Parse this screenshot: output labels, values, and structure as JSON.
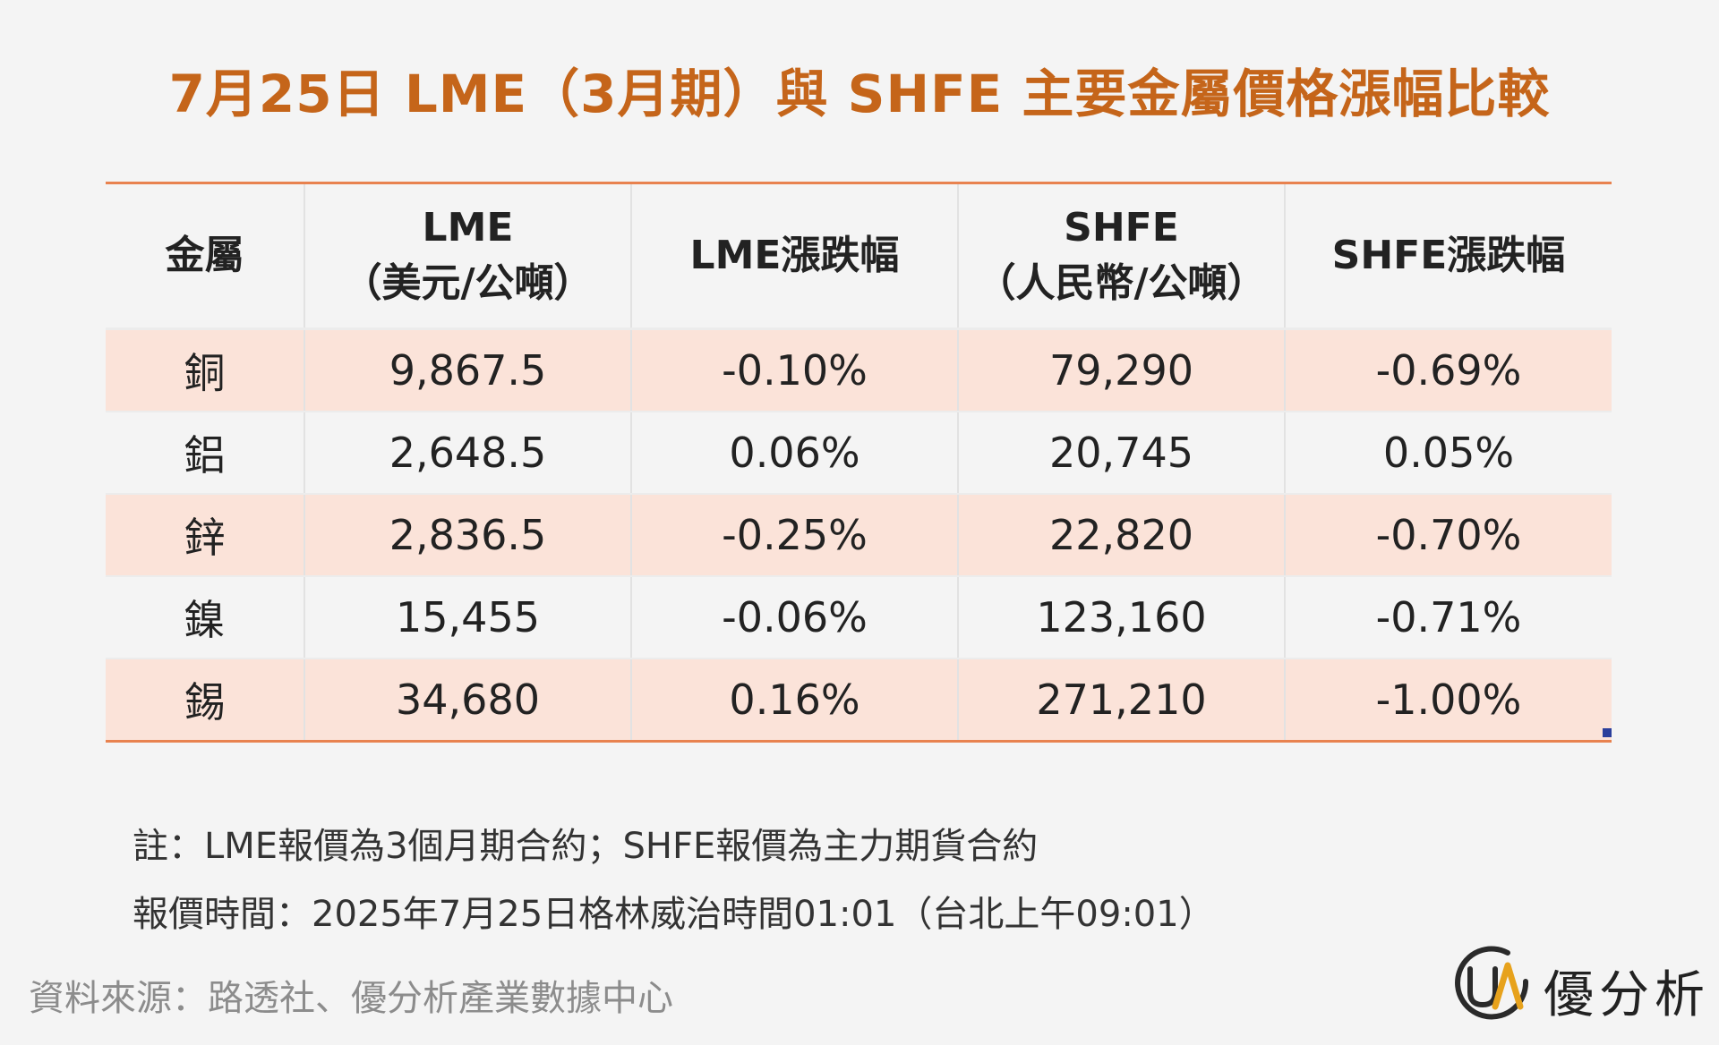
{
  "title": "7月25日 LME（3月期）與 SHFE 主要金屬價格漲幅比較",
  "chart_data": {
    "type": "table",
    "columns": [
      {
        "line1": "金屬",
        "line2": ""
      },
      {
        "line1": "LME",
        "line2": "（美元/公噸）"
      },
      {
        "line1": "LME漲跌幅",
        "line2": ""
      },
      {
        "line1": "SHFE",
        "line2": "（人民幣/公噸）"
      },
      {
        "line1": "SHFE漲跌幅",
        "line2": ""
      }
    ],
    "rows": [
      {
        "metal": "銅",
        "lme": "9,867.5",
        "lme_change": "-0.10%",
        "shfe": "79,290",
        "shfe_change": "-0.69%"
      },
      {
        "metal": "鋁",
        "lme": "2,648.5",
        "lme_change": "0.06%",
        "shfe": "20,745",
        "shfe_change": "0.05%"
      },
      {
        "metal": "鋅",
        "lme": "2,836.5",
        "lme_change": "-0.25%",
        "shfe": "22,820",
        "shfe_change": "-0.70%"
      },
      {
        "metal": "鎳",
        "lme": "15,455",
        "lme_change": "-0.06%",
        "shfe": "123,160",
        "shfe_change": "-0.71%"
      },
      {
        "metal": "錫",
        "lme": "34,680",
        "lme_change": "0.16%",
        "shfe": "271,210",
        "shfe_change": "-1.00%"
      }
    ]
  },
  "notes": {
    "line1": "註：LME報價為3個月期合約；SHFE報價為主力期貨合約",
    "line2": "報價時間：2025年7月25日格林威治時間01:01（台北上午09:01）"
  },
  "source": "資料來源：路透社、優分析產業數據中心",
  "logo": {
    "mark_text": "UA",
    "text": "優分析"
  },
  "colors": {
    "title": "#c5651a",
    "accent_border": "#e8824f",
    "row_highlight": "#fbe3d9",
    "background": "#f4f4f4",
    "logo_mark": "#e7a21c"
  }
}
